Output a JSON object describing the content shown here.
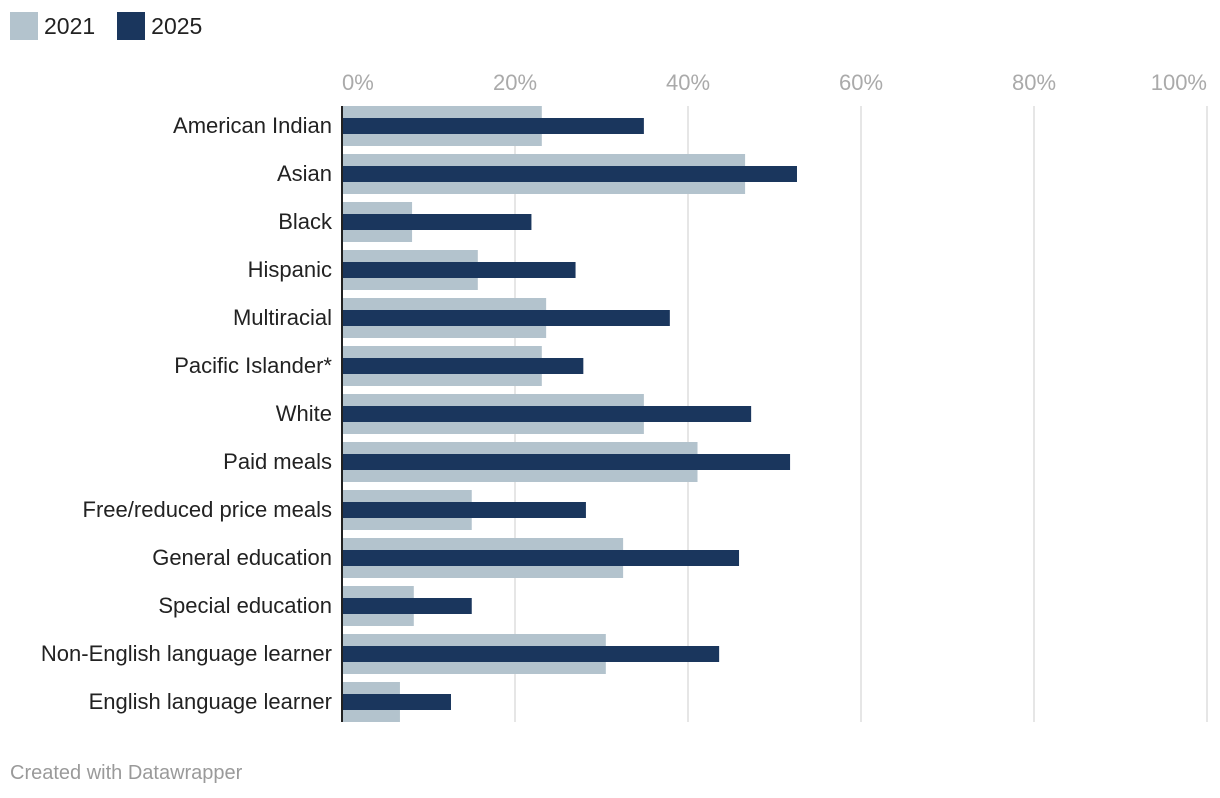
{
  "footer": {
    "credit": "Created with Datawrapper"
  },
  "chart_data": {
    "type": "bar",
    "orientation": "horizontal",
    "categories": [
      "American Indian",
      "Asian",
      "Black",
      "Hispanic",
      "Multiracial",
      "Pacific Islander*",
      "White",
      "Paid meals",
      "Free/reduced price meals",
      "General education",
      "Special education",
      "Non-English language learner",
      "English language learner"
    ],
    "series": [
      {
        "name": "2021",
        "color": "#b3c3cd",
        "values": [
          23.1,
          46.6,
          8.1,
          15.7,
          23.6,
          23.1,
          34.9,
          41.1,
          15.0,
          32.5,
          8.3,
          30.5,
          6.7
        ]
      },
      {
        "name": "2025",
        "color": "#1a365d",
        "values": [
          34.9,
          52.6,
          21.9,
          27.0,
          37.9,
          27.9,
          47.3,
          51.8,
          28.2,
          45.9,
          15.0,
          43.6,
          12.6
        ]
      }
    ],
    "x_ticks": [
      "0%",
      "20%",
      "40%",
      "60%",
      "80%",
      "100%"
    ],
    "xlim": [
      0,
      100
    ],
    "legend_position": "top-left",
    "grid": true
  }
}
